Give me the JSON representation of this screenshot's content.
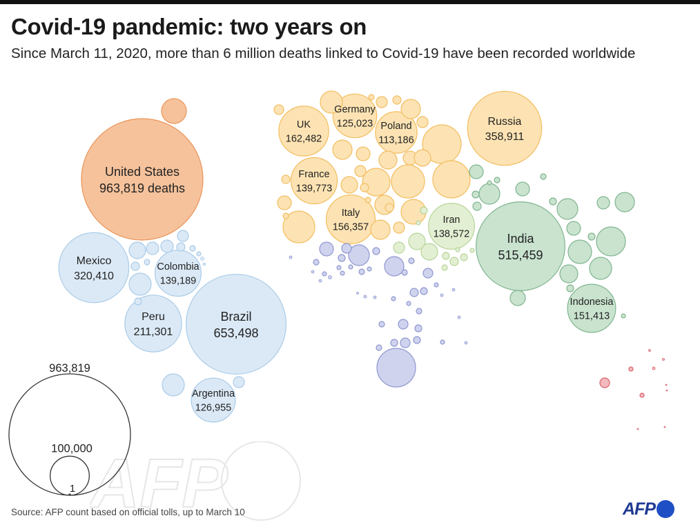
{
  "title": "Covid-19 pandemic: two years on",
  "subtitle": "Since March 11, 2020, more than 6 million deaths linked to Covid-19 have been recorded worldwide",
  "source": "Source: AFP count based on official tolls, up to March 10",
  "logo": {
    "text": "AFP"
  },
  "watermark": {
    "text": "AFP"
  },
  "colors": {
    "north_america": "#f6c29b",
    "north_america_stroke": "#e9955a",
    "latin_america": "#dbe9f6",
    "latin_america_stroke": "#a9cbe8",
    "europe": "#fde3b3",
    "europe_stroke": "#f2bd5f",
    "middle_east": "#e3efd2",
    "middle_east_stroke": "#b6d49a",
    "asia": "#c9e3cf",
    "asia_stroke": "#7fb48e",
    "africa": "#cfd3ee",
    "africa_stroke": "#8f97cf",
    "oceania": "#f3b9bd",
    "oceania_stroke": "#d9606a"
  },
  "chart_data": {
    "type": "bubble",
    "unit": "deaths",
    "labeled_bubbles": [
      {
        "country": "United States",
        "deaths": 963819,
        "value_text": "963,819 deaths",
        "region": "north_america"
      },
      {
        "country": "Brazil",
        "deaths": 653498,
        "value_text": "653,498",
        "region": "latin_america"
      },
      {
        "country": "India",
        "deaths": 515459,
        "value_text": "515,459",
        "region": "asia"
      },
      {
        "country": "Russia",
        "deaths": 358911,
        "value_text": "358,911",
        "region": "europe"
      },
      {
        "country": "Mexico",
        "deaths": 320410,
        "value_text": "320,410",
        "region": "latin_america"
      },
      {
        "country": "Peru",
        "deaths": 211301,
        "value_text": "211,301",
        "region": "latin_america"
      },
      {
        "country": "UK",
        "deaths": 162482,
        "value_text": "162,482",
        "region": "europe"
      },
      {
        "country": "Italy",
        "deaths": 156357,
        "value_text": "156,357",
        "region": "europe"
      },
      {
        "country": "Indonesia",
        "deaths": 151413,
        "value_text": "151,413",
        "region": "asia"
      },
      {
        "country": "France",
        "deaths": 139773,
        "value_text": "139,773",
        "region": "europe"
      },
      {
        "country": "Colombia",
        "deaths": 139189,
        "value_text": "139,189",
        "region": "latin_america"
      },
      {
        "country": "Iran",
        "deaths": 138572,
        "value_text": "138,572",
        "region": "middle_east"
      },
      {
        "country": "Argentina",
        "deaths": 126955,
        "value_text": "126,955",
        "region": "latin_america"
      },
      {
        "country": "Germany",
        "deaths": 125023,
        "value_text": "125,023",
        "region": "europe"
      },
      {
        "country": "Poland",
        "deaths": 113186,
        "value_text": "113,186",
        "region": "europe"
      }
    ],
    "legend": {
      "values": [
        963819,
        100000,
        1
      ],
      "labels": [
        "963,819",
        "100,000",
        "1"
      ]
    }
  }
}
